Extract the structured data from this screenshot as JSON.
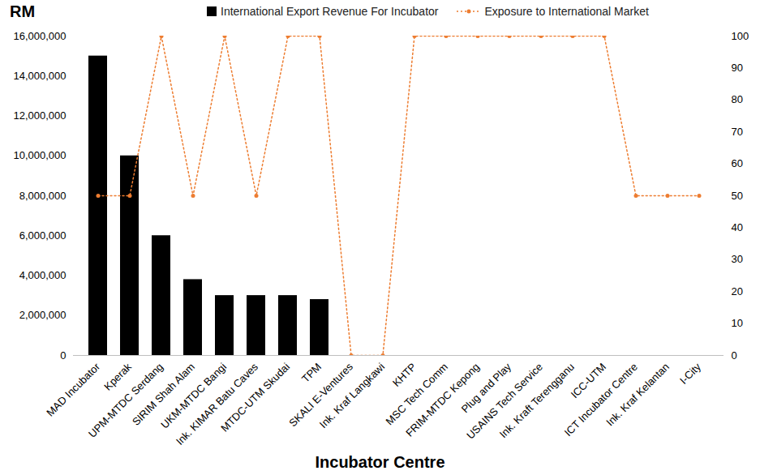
{
  "chart_data": {
    "type": "bar",
    "x_label": "Incubator Centre",
    "y_label": "RM",
    "categories": [
      "MAD Incubator",
      "Kperak",
      "UPM-MTDC Serdang",
      "SIRIM Shah Alam",
      "UKM-MTDC Bangi",
      "Ink. KIMAR Batu Caves",
      "MTDC-UTM Skudai",
      "TPM",
      "SKALI E-Ventures",
      "Ink. Kraf Langkawi",
      "KHTP",
      "MSC Tech Comm",
      "FRIM-MTDC Kepong",
      "Plug and Play",
      "USAINS Tech Service",
      "Ink. Kraft Terengganu",
      "ICC-UTM",
      "ICT Incubator Centre",
      "Ink. Kraf Kelantan",
      "I-City"
    ],
    "ylim": [
      0,
      16000000
    ],
    "yticks": [
      0,
      {
        "value": 2000000,
        "label": "2,000,000"
      },
      {
        "value": 4000000,
        "label": "4,000,000"
      },
      {
        "value": 6000000,
        "label": "6,000,000"
      },
      {
        "value": 8000000,
        "label": "8,000,000"
      },
      {
        "value": 10000000,
        "label": "10,000,000"
      },
      {
        "value": 12000000,
        "label": "12,000,000"
      },
      {
        "value": 14000000,
        "label": "14,000,000"
      },
      {
        "value": 16000000,
        "label": "16,000,000"
      }
    ],
    "y2lim": [
      0,
      100
    ],
    "y2ticks": [
      0,
      10,
      20,
      30,
      40,
      50,
      60,
      70,
      80,
      90,
      100
    ],
    "legend": "top",
    "series": [
      {
        "name": "International Export Revenue For Incubator",
        "type": "bar",
        "color": "#000000",
        "values": [
          15000000,
          10000000,
          6000000,
          3800000,
          3000000,
          3000000,
          3000000,
          2800000,
          0,
          0,
          0,
          0,
          0,
          0,
          0,
          0,
          0,
          0,
          0,
          0
        ]
      },
      {
        "name": "Exposure to International Market",
        "type": "line",
        "color": "#ed7d31",
        "line_style": "dotted",
        "marker": "circle",
        "axis": "y2",
        "values": [
          50,
          50,
          100,
          50,
          100,
          50,
          100,
          100,
          0,
          0,
          100,
          100,
          100,
          100,
          100,
          100,
          100,
          50,
          50,
          50
        ]
      }
    ]
  }
}
